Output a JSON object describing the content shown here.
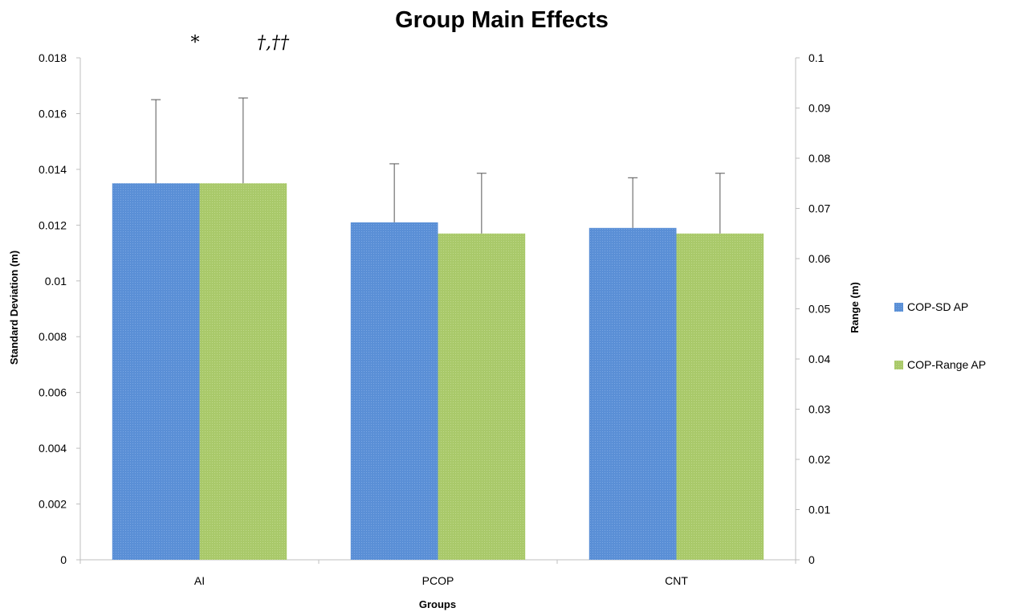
{
  "chart_data": {
    "type": "bar",
    "title": "Group Main Effects",
    "xlabel": "Groups",
    "ylabel": "Standard Deviation (m)",
    "y2label": "Range (m)",
    "categories": [
      "AI",
      "PCOP",
      "CNT"
    ],
    "ylim": [
      0,
      0.018
    ],
    "y2lim": [
      0,
      0.1
    ],
    "yticks": [
      "0",
      "0.002",
      "0.004",
      "0.006",
      "0.008",
      "0.01",
      "0.012",
      "0.014",
      "0.016",
      "0.018"
    ],
    "y2ticks": [
      "0",
      "0.01",
      "0.02",
      "0.03",
      "0.04",
      "0.05",
      "0.06",
      "0.07",
      "0.08",
      "0.09",
      "0.1"
    ],
    "series": [
      {
        "name": "COP-SD AP",
        "axis": "left",
        "color": "#5a8fd6",
        "values": [
          0.0135,
          0.0121,
          0.0119
        ],
        "error": [
          0.003,
          0.0021,
          0.0018
        ]
      },
      {
        "name": "COP-Range AP",
        "axis": "right",
        "color": "#a9c96a",
        "values": [
          0.075,
          0.065,
          0.065
        ],
        "error": [
          0.017,
          0.012,
          0.012
        ]
      }
    ],
    "annotations": [
      "*",
      "†,††"
    ],
    "legend_position": "right",
    "grid": false
  }
}
